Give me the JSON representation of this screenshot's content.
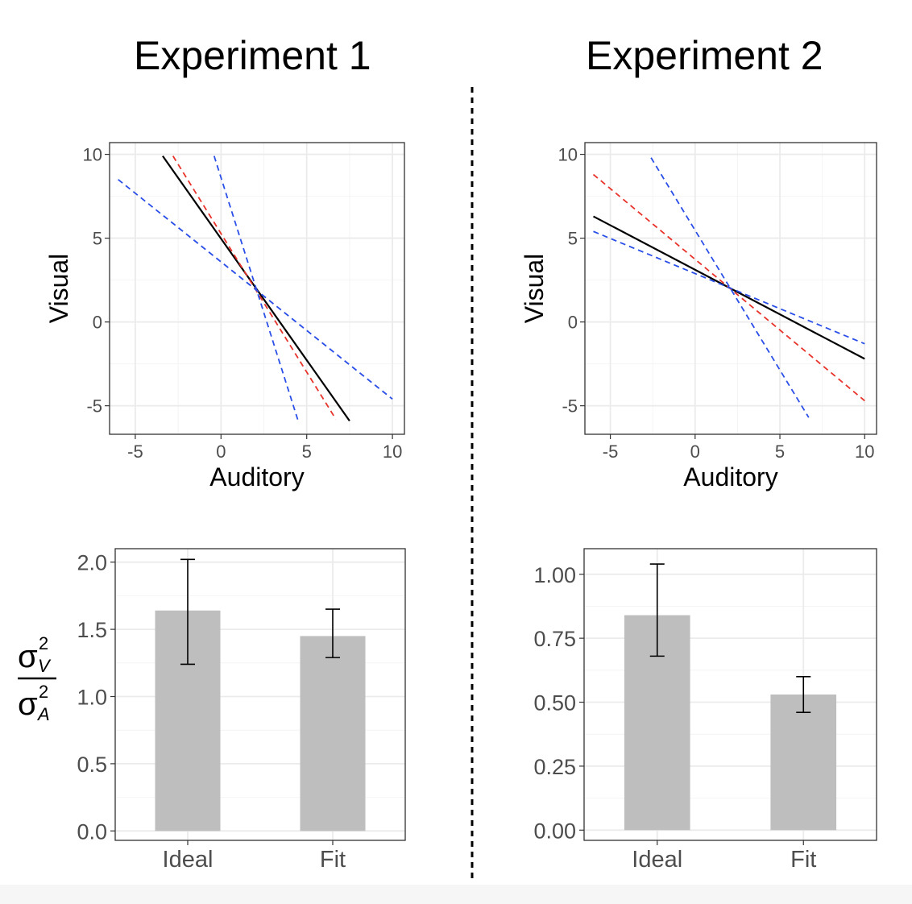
{
  "titles": {
    "left": "Experiment 1",
    "right": "Experiment 2"
  },
  "y_label_fraction": {
    "numerator_symbol": "σ",
    "numerator_sup": "2",
    "numerator_sub": "V",
    "denominator_symbol": "σ",
    "denominator_sup": "2",
    "denominator_sub": "A"
  },
  "colors": {
    "solid": "#000000",
    "red": "#e8332a",
    "blue": "#2a4fe8",
    "bar": "#bebebe",
    "grid_major": "#ebebeb",
    "grid_minor": "#f4f4f4",
    "axis_text": "#4d4d4d"
  },
  "chart_data": [
    {
      "type": "line",
      "panel": "exp1-lines",
      "xlabel": "Auditory",
      "ylabel": "Visual",
      "xlim": [
        -6.5,
        10.7
      ],
      "ylim": [
        -6.7,
        10.7
      ],
      "xticks": [
        -5,
        0,
        5,
        10
      ],
      "yticks": [
        -5,
        0,
        5,
        10
      ],
      "grid": true,
      "series": [
        {
          "color": "solid",
          "style": "solid",
          "x": [
            -3.4,
            7.5
          ],
          "y": [
            9.9,
            -5.9
          ]
        },
        {
          "color": "red",
          "style": "dashed",
          "x": [
            -2.8,
            6.7
          ],
          "y": [
            9.9,
            -5.8
          ]
        },
        {
          "color": "blue",
          "style": "dashed",
          "x": [
            -0.4,
            4.5
          ],
          "y": [
            9.9,
            -5.9
          ]
        },
        {
          "color": "blue",
          "style": "dashed",
          "x": [
            -6.0,
            10.0
          ],
          "y": [
            8.5,
            -4.6
          ]
        }
      ]
    },
    {
      "type": "line",
      "panel": "exp2-lines",
      "xlabel": "Auditory",
      "ylabel": "Visual",
      "xlim": [
        -6.5,
        10.7
      ],
      "ylim": [
        -6.7,
        10.7
      ],
      "xticks": [
        -5,
        0,
        5,
        10
      ],
      "yticks": [
        -5,
        0,
        5,
        10
      ],
      "grid": true,
      "series": [
        {
          "color": "solid",
          "style": "solid",
          "x": [
            -6.0,
            10.0
          ],
          "y": [
            6.3,
            -2.2
          ]
        },
        {
          "color": "red",
          "style": "dashed",
          "x": [
            -6.0,
            10.0
          ],
          "y": [
            8.8,
            -4.7
          ]
        },
        {
          "color": "blue",
          "style": "dashed",
          "x": [
            -2.6,
            6.7
          ],
          "y": [
            9.8,
            -5.7
          ]
        },
        {
          "color": "blue",
          "style": "dashed",
          "x": [
            -6.0,
            10.0
          ],
          "y": [
            5.4,
            -1.3
          ]
        }
      ]
    },
    {
      "type": "bar",
      "panel": "exp1-bars",
      "categories": [
        "Ideal",
        "Fit"
      ],
      "values": [
        1.64,
        1.45
      ],
      "errors": [
        [
          1.24,
          2.02
        ],
        [
          1.29,
          1.65
        ]
      ],
      "ylim": [
        -0.07,
        2.1
      ],
      "yticks": [
        "0.0",
        "0.5",
        "1.0",
        "1.5",
        "2.0"
      ],
      "ytick_values": [
        0,
        0.5,
        1.0,
        1.5,
        2.0
      ],
      "grid": true
    },
    {
      "type": "bar",
      "panel": "exp2-bars",
      "categories": [
        "Ideal",
        "Fit"
      ],
      "values": [
        0.84,
        0.53
      ],
      "errors": [
        [
          0.68,
          1.04
        ],
        [
          0.46,
          0.6
        ]
      ],
      "ylim": [
        -0.04,
        1.1
      ],
      "yticks": [
        "0.00",
        "0.25",
        "0.50",
        "0.75",
        "1.00"
      ],
      "ytick_values": [
        0,
        0.25,
        0.5,
        0.75,
        1.0
      ],
      "grid": true
    }
  ]
}
